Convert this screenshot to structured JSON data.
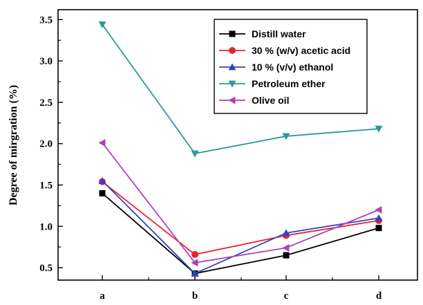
{
  "chart_data": {
    "type": "line",
    "title": "",
    "xlabel": "",
    "ylabel": "Degree of mirgration (%)",
    "categories": [
      "a",
      "b",
      "c",
      "d"
    ],
    "ylim": [
      0.35,
      3.62
    ],
    "yticks": [
      "0.5",
      "1.0",
      "1.5",
      "2.0",
      "2.5",
      "3.0",
      "3.5"
    ],
    "grid": false,
    "legend_position": "top-right",
    "series": [
      {
        "name": "Distill water",
        "color": "#000000",
        "marker": "square",
        "values": [
          1.4,
          0.43,
          0.65,
          0.98
        ]
      },
      {
        "name": "30 % (w/v) acetic acid",
        "color": "#e8242b",
        "marker": "circle",
        "values": [
          1.54,
          0.66,
          0.89,
          1.07
        ]
      },
      {
        "name": "10 % (v/v) ethanol",
        "color": "#3344bb",
        "marker": "triangle-up",
        "values": [
          1.55,
          0.43,
          0.92,
          1.1
        ]
      },
      {
        "name": " Petroleum ether",
        "color": "#2a9a98",
        "marker": "triangle-down",
        "values": [
          3.44,
          1.88,
          2.09,
          2.18
        ]
      },
      {
        "name": "Olive oil",
        "color": "#b040b8",
        "marker": "triangle-left",
        "values": [
          2.01,
          0.56,
          0.74,
          1.2
        ]
      }
    ]
  }
}
